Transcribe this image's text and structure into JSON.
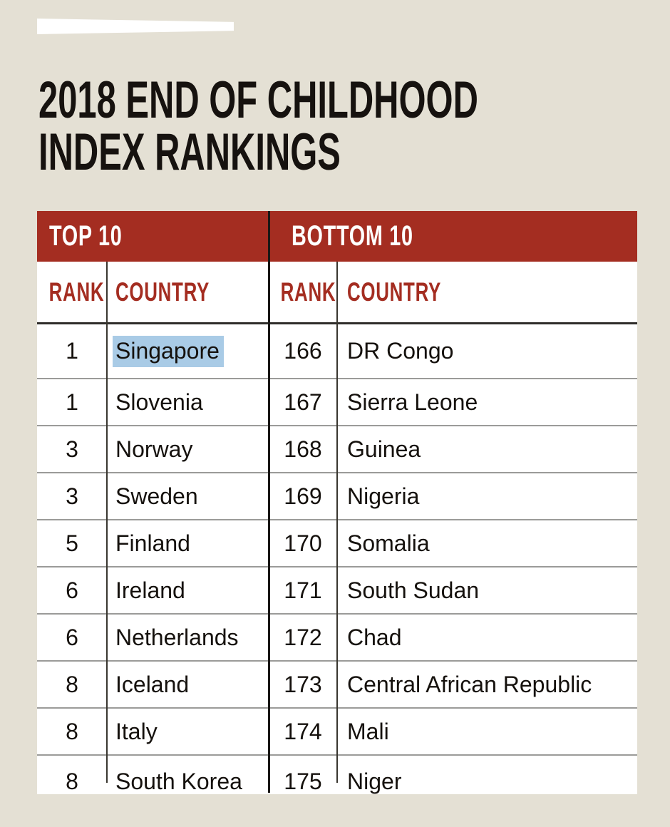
{
  "page": {
    "background_color": "#E4E0D4",
    "accent_color": "#A42D21",
    "selection_highlight_color": "#A9CBE6"
  },
  "title": {
    "line1": "2018 END OF CHILDHOOD",
    "line2": "INDEX RANKINGS"
  },
  "table": {
    "sections": [
      {
        "label": "TOP 10",
        "rank_header": "RANK",
        "country_header": "COUNTRY"
      },
      {
        "label": "BOTTOM 10",
        "rank_header": "RANK",
        "country_header": "COUNTRY"
      }
    ],
    "rows": [
      {
        "top_rank": "1",
        "top_country": "Singapore",
        "top_country_highlighted": true,
        "bottom_rank": "166",
        "bottom_country": "DR Congo"
      },
      {
        "top_rank": "1",
        "top_country": "Slovenia",
        "bottom_rank": "167",
        "bottom_country": "Sierra Leone"
      },
      {
        "top_rank": "3",
        "top_country": "Norway",
        "bottom_rank": "168",
        "bottom_country": "Guinea"
      },
      {
        "top_rank": "3",
        "top_country": "Sweden",
        "bottom_rank": "169",
        "bottom_country": "Nigeria"
      },
      {
        "top_rank": "5",
        "top_country": "Finland",
        "bottom_rank": "170",
        "bottom_country": "Somalia"
      },
      {
        "top_rank": "6",
        "top_country": "Ireland",
        "bottom_rank": "171",
        "bottom_country": "South Sudan"
      },
      {
        "top_rank": "6",
        "top_country": "Netherlands",
        "bottom_rank": "172",
        "bottom_country": "Chad"
      },
      {
        "top_rank": "8",
        "top_country": "Iceland",
        "bottom_rank": "173",
        "bottom_country": "Central African Republic"
      },
      {
        "top_rank": "8",
        "top_country": "Italy",
        "bottom_rank": "174",
        "bottom_country": "Mali"
      },
      {
        "top_rank": "8",
        "top_country": "South Korea",
        "bottom_rank": "175",
        "bottom_country": "Niger"
      }
    ]
  }
}
